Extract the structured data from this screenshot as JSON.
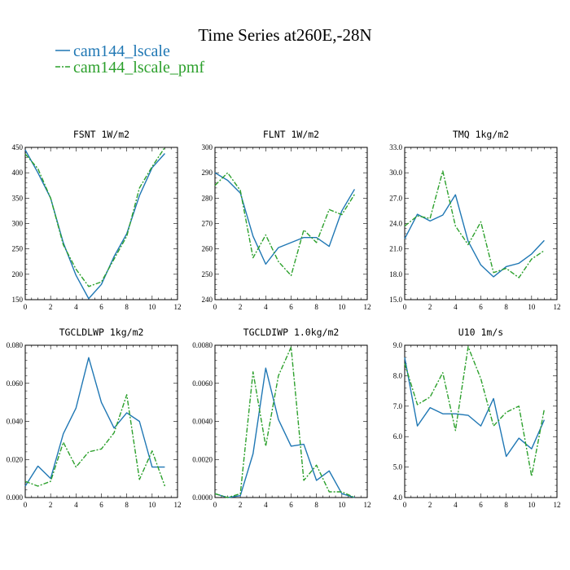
{
  "title": "Time Series at260E,-28N",
  "colors": {
    "series_1": "#1f77b4",
    "series_2": "#2ca02c"
  },
  "legend": [
    {
      "label": "cam144_lscale",
      "style": "solid"
    },
    {
      "label": "cam144_lscale_pmf",
      "style": "dashdot"
    }
  ],
  "chart_data": [
    {
      "type": "line",
      "title": "FSNT   1W/m2",
      "x": [
        0,
        1,
        2,
        3,
        4,
        5,
        6,
        7,
        8,
        9,
        10,
        11
      ],
      "xlim": [
        0,
        12
      ],
      "xticks": [
        0,
        2,
        4,
        6,
        8,
        10,
        12
      ],
      "ylim": [
        150,
        450
      ],
      "yticks": [
        150,
        200,
        250,
        300,
        350,
        400,
        450
      ],
      "ytick_labels": [
        "150",
        "200",
        "250",
        "300",
        "350",
        "400",
        "450"
      ],
      "series": [
        {
          "name": "cam144_lscale",
          "values": [
            445,
            400,
            350,
            262,
            198,
            152,
            180,
            235,
            280,
            355,
            410,
            438
          ]
        },
        {
          "name": "cam144_lscale_pmf",
          "values": [
            437,
            408,
            350,
            258,
            210,
            176,
            185,
            230,
            275,
            370,
            412,
            450
          ]
        }
      ]
    },
    {
      "type": "line",
      "title": "FLNT   1W/m2",
      "x": [
        0,
        1,
        2,
        3,
        4,
        5,
        6,
        7,
        8,
        9,
        10,
        11
      ],
      "xlim": [
        0,
        12
      ],
      "xticks": [
        0,
        2,
        4,
        6,
        8,
        10,
        12
      ],
      "ylim": [
        240,
        300
      ],
      "yticks": [
        240,
        250,
        260,
        270,
        280,
        290,
        300
      ],
      "ytick_labels": [
        "240",
        "250",
        "260",
        "270",
        "280",
        "290",
        "300"
      ],
      "series": [
        {
          "name": "cam144_lscale",
          "values": [
            290,
            287,
            282,
            265,
            254,
            260.5,
            262.5,
            264.5,
            264.5,
            261,
            275,
            283.5
          ]
        },
        {
          "name": "cam144_lscale_pmf",
          "values": [
            285,
            290,
            283,
            256.5,
            265.5,
            255,
            249.5,
            267.5,
            262.5,
            275.5,
            273.5,
            281.5
          ]
        }
      ]
    },
    {
      "type": "line",
      "title": "TMQ   1kg/m2",
      "x": [
        0,
        1,
        2,
        3,
        4,
        5,
        6,
        7,
        8,
        9,
        10,
        11
      ],
      "xlim": [
        0,
        12
      ],
      "xticks": [
        0,
        2,
        4,
        6,
        8,
        10,
        12
      ],
      "ylim": [
        15,
        33
      ],
      "yticks": [
        15,
        18,
        21,
        24,
        27,
        30,
        33
      ],
      "ytick_labels": [
        "15.0",
        "18.0",
        "21.0",
        "24.0",
        "27.0",
        "30.0",
        "33.0"
      ],
      "series": [
        {
          "name": "cam144_lscale",
          "values": [
            22.2,
            25.1,
            24.3,
            25.0,
            27.4,
            21.9,
            19.1,
            17.7,
            18.9,
            19.3,
            20.4,
            22.0
          ]
        },
        {
          "name": "cam144_lscale_pmf",
          "values": [
            23.7,
            24.9,
            24.6,
            30.2,
            23.7,
            21.5,
            24.2,
            18.2,
            18.7,
            17.6,
            19.8,
            20.8
          ]
        }
      ]
    },
    {
      "type": "line",
      "title": "TGCLDLWP   1kg/m2",
      "x": [
        0,
        1,
        2,
        3,
        4,
        5,
        6,
        7,
        8,
        9,
        10,
        11
      ],
      "xlim": [
        0,
        12
      ],
      "xticks": [
        0,
        2,
        4,
        6,
        8,
        10,
        12
      ],
      "ylim": [
        0,
        0.08
      ],
      "yticks": [
        0,
        0.02,
        0.04,
        0.06,
        0.08
      ],
      "ytick_labels": [
        "0.000",
        "0.020",
        "0.040",
        "0.060",
        "0.080"
      ],
      "series": [
        {
          "name": "cam144_lscale",
          "values": [
            0.006,
            0.0165,
            0.01,
            0.0335,
            0.047,
            0.0735,
            0.05,
            0.0365,
            0.0445,
            0.04,
            0.016,
            0.016
          ]
        },
        {
          "name": "cam144_lscale_pmf",
          "values": [
            0.0085,
            0.006,
            0.0085,
            0.029,
            0.016,
            0.024,
            0.0255,
            0.034,
            0.054,
            0.0095,
            0.0245,
            0.006
          ]
        }
      ]
    },
    {
      "type": "line",
      "title": "TGCLDIWP   1.0kg/m2",
      "x": [
        0,
        1,
        2,
        3,
        4,
        5,
        6,
        7,
        8,
        9,
        10,
        11
      ],
      "xlim": [
        0,
        12
      ],
      "xticks": [
        0,
        2,
        4,
        6,
        8,
        10,
        12
      ],
      "ylim": [
        0,
        0.008
      ],
      "yticks": [
        0,
        0.002,
        0.004,
        0.006,
        0.008
      ],
      "ytick_labels": [
        "0.0000",
        "0.0020",
        "0.0040",
        "0.0060",
        "0.0080"
      ],
      "series": [
        {
          "name": "cam144_lscale",
          "values": [
            0.0002,
            0.0,
            0.0001,
            0.0023,
            0.0068,
            0.0041,
            0.0027,
            0.0028,
            0.0009,
            0.0014,
            0.0002,
            0.0
          ]
        },
        {
          "name": "cam144_lscale_pmf",
          "values": [
            0.0002,
            0.0,
            0.0002,
            0.0066,
            0.0027,
            0.0064,
            0.0079,
            0.0009,
            0.0017,
            0.0003,
            0.0003,
            0.0
          ]
        }
      ]
    },
    {
      "type": "line",
      "title": "U10   1m/s",
      "x": [
        0,
        1,
        2,
        3,
        4,
        5,
        6,
        7,
        8,
        9,
        10,
        11
      ],
      "xlim": [
        0,
        12
      ],
      "xticks": [
        0,
        2,
        4,
        6,
        8,
        10,
        12
      ],
      "ylim": [
        4,
        9
      ],
      "yticks": [
        4,
        5,
        6,
        7,
        8,
        9
      ],
      "ytick_labels": [
        "4.0",
        "5.0",
        "6.0",
        "7.0",
        "8.0",
        "9.0"
      ],
      "series": [
        {
          "name": "cam144_lscale",
          "values": [
            8.6,
            6.35,
            6.95,
            6.75,
            6.75,
            6.7,
            6.35,
            7.25,
            5.35,
            5.95,
            5.6,
            6.55
          ]
        },
        {
          "name": "cam144_lscale_pmf",
          "values": [
            8.4,
            7.05,
            7.3,
            8.1,
            6.2,
            8.95,
            7.9,
            6.35,
            6.8,
            7.0,
            4.7,
            6.9
          ]
        }
      ]
    }
  ]
}
